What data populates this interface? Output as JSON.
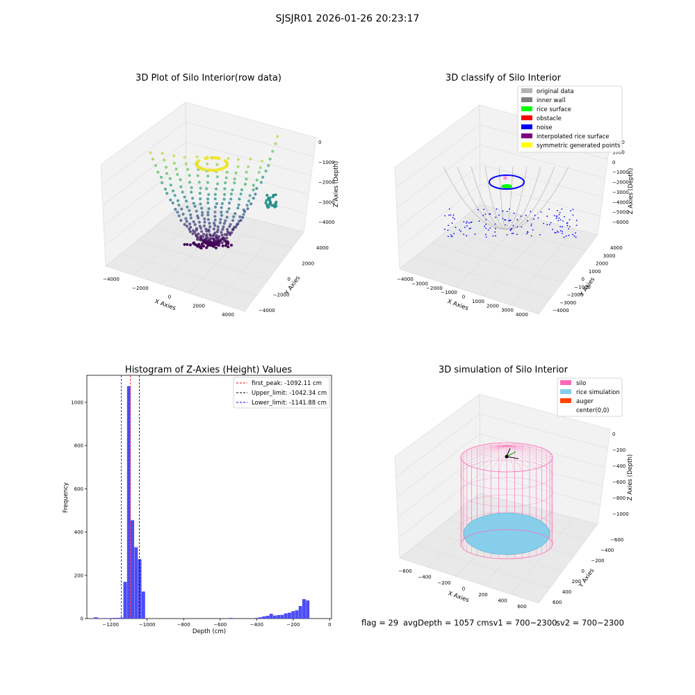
{
  "suptitle": "SJSJR01 2026-01-26 20:23:17",
  "colors": {
    "hist_bar": "#4c4cf6",
    "first_peak": "#ff0000",
    "upper_limit": "#000000",
    "lower_limit": "#0000ff",
    "silo": "#ff69b4",
    "rice_simulation": "#87ceeb",
    "auger": "#ff4500",
    "original_data": "#b4b4b4",
    "inner_wall": "#808080",
    "rice_surface": "#00ff00",
    "obstacle": "#ff0000",
    "noise": "#0000ff",
    "interpolated_rice_surface": "#800080",
    "symmetric_generated_points": "#ffff00"
  },
  "panel1": {
    "title": "3D Plot of Silo Interior(row data)",
    "xlabel": "X Axies",
    "ylabel": "Y Axies",
    "zlabel": "Z Axies (Depth)",
    "xticks": [
      "−4000",
      "−2000",
      "0",
      "2000",
      "4000"
    ],
    "yticks": [
      "−4000",
      "−2000",
      "0",
      "2000",
      "4000"
    ],
    "zticks": [
      "0",
      "−1000",
      "−2000",
      "−3000",
      "−4000"
    ],
    "colormap": "viridis"
  },
  "panel2": {
    "title": "3D classify of Silo Interior",
    "xlabel": "X Axies",
    "ylabel": "Y Axies",
    "zlabel": "Z Axies (Depth)",
    "xticks": [
      "−4000",
      "−3000",
      "−2000",
      "−1000",
      "0",
      "1000",
      "2000",
      "3000",
      "4000"
    ],
    "yticks": [
      "−4000",
      "−3000",
      "−2000",
      "−1000",
      "0",
      "1000",
      "2000",
      "3000",
      "4000"
    ],
    "zticks": [
      "2000",
      "1000",
      "0",
      "−1000",
      "−2000",
      "−3000",
      "−4000",
      "−5000",
      "−6000"
    ],
    "legend": [
      {
        "label": "original data",
        "color": "#b4b4b4"
      },
      {
        "label": "inner wall",
        "color": "#808080"
      },
      {
        "label": "rice surface",
        "color": "#00ff00"
      },
      {
        "label": "obstacle",
        "color": "#ff0000"
      },
      {
        "label": "noise",
        "color": "#0000ff"
      },
      {
        "label": "interpolated rice surface",
        "color": "#800080"
      },
      {
        "label": "symmetric generated points",
        "color": "#ffff00"
      }
    ]
  },
  "panel4": {
    "title": "3D simulation of Silo Interior",
    "xlabel": "X Axies",
    "ylabel": "Y Axies",
    "zlabel": "Z Axies (Depth)",
    "xticks": [
      "−600",
      "−400",
      "−200",
      "0",
      "200",
      "400",
      "600"
    ],
    "yticks": [
      "600",
      "400",
      "200",
      "0",
      "−200",
      "−400",
      "−600"
    ],
    "zticks": [
      "0",
      "−200",
      "−400",
      "−600",
      "−800",
      "−1000"
    ],
    "legend": [
      {
        "label": "silo",
        "color": "#ff69b4"
      },
      {
        "label": "rice simulation",
        "color": "#87ceeb"
      },
      {
        "label": "auger",
        "color": "#ff4500"
      },
      {
        "label": "center(0,0)",
        "color": ""
      }
    ]
  },
  "footer": {
    "flag": "flag = 29",
    "avg": "avgDepth = 1057 cmsv1 = 700~2300",
    "sv2": "sv2 = 700~2300"
  },
  "chart_data": {
    "type": "bar",
    "title": "Histogram of Z-Axies (Height) Values",
    "xlabel": "Depth (cm)",
    "ylabel": "Frequency",
    "xlim": [
      -1330,
      10
    ],
    "ylim": [
      0,
      1125
    ],
    "xticks": [
      -1200,
      -1000,
      -800,
      -600,
      -400,
      -200,
      0
    ],
    "yticks": [
      0,
      200,
      400,
      600,
      800,
      1000
    ],
    "bin_width": 20,
    "bins": [
      {
        "x": -1280,
        "value": 6
      },
      {
        "x": -1240,
        "value": 2
      },
      {
        "x": -1220,
        "value": 2
      },
      {
        "x": -1200,
        "value": 2
      },
      {
        "x": -1180,
        "value": 3
      },
      {
        "x": -1160,
        "value": 3
      },
      {
        "x": -1140,
        "value": 5
      },
      {
        "x": -1120,
        "value": 170
      },
      {
        "x": -1100,
        "value": 1075
      },
      {
        "x": -1080,
        "value": 455
      },
      {
        "x": -1060,
        "value": 330
      },
      {
        "x": -1040,
        "value": 275
      },
      {
        "x": -1020,
        "value": 125
      },
      {
        "x": -540,
        "value": 3
      },
      {
        "x": -400,
        "value": 3
      },
      {
        "x": -380,
        "value": 6
      },
      {
        "x": -360,
        "value": 10
      },
      {
        "x": -340,
        "value": 13
      },
      {
        "x": -320,
        "value": 22
      },
      {
        "x": -300,
        "value": 14
      },
      {
        "x": -280,
        "value": 16
      },
      {
        "x": -260,
        "value": 17
      },
      {
        "x": -240,
        "value": 24
      },
      {
        "x": -220,
        "value": 27
      },
      {
        "x": -200,
        "value": 34
      },
      {
        "x": -180,
        "value": 38
      },
      {
        "x": -160,
        "value": 58
      },
      {
        "x": -140,
        "value": 90
      },
      {
        "x": -120,
        "value": 84
      }
    ],
    "reference_lines": [
      {
        "name": "first_peak: -1092.11 cm",
        "x": -1092.11,
        "color": "#ff0000"
      },
      {
        "name": "Upper_limit: -1042.34 cm",
        "x": -1042.34,
        "color": "#000000"
      },
      {
        "name": "Lower_limit: -1141.88 cm",
        "x": -1141.88,
        "color": "#0000ff"
      }
    ]
  }
}
